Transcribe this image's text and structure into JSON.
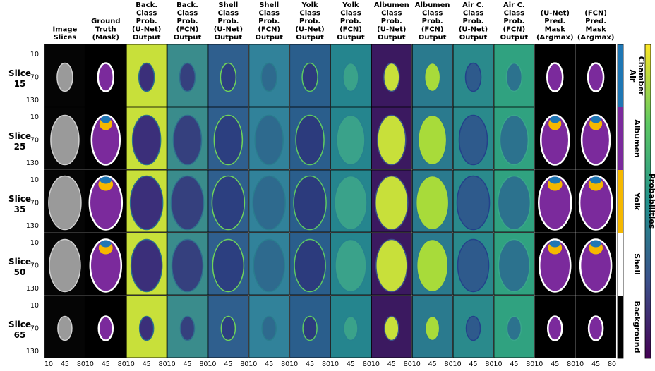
{
  "columns": [
    [
      "Image",
      "Slices"
    ],
    [
      "Ground",
      "Truth",
      "(Mask)"
    ],
    [
      "Back.",
      "Class",
      "Prob.",
      "(U-Net)",
      "Output"
    ],
    [
      "Back.",
      "Class",
      "Prob.",
      "(FCN)",
      "Output"
    ],
    [
      "Shell",
      "Class",
      "Prob.",
      "(U-Net)",
      "Output"
    ],
    [
      "Shell",
      "Class",
      "Prob.",
      "(FCN)",
      "Output"
    ],
    [
      "Yolk",
      "Class",
      "Prob.",
      "(U-Net)",
      "Output"
    ],
    [
      "Yolk",
      "Class",
      "Prob.",
      "(FCN)",
      "Output"
    ],
    [
      "Albumen",
      "Class",
      "Prob.",
      "(U-Net)",
      "Output"
    ],
    [
      "Albumen",
      "Class",
      "Prob.",
      "(FCN)",
      "Output"
    ],
    [
      "Air C.",
      "Class",
      "Prob.",
      "(U-Net)",
      "Output"
    ],
    [
      "Air C.",
      "Class",
      "Prob.",
      "(FCN)",
      "Output"
    ],
    [
      "(U-Net)",
      "Pred.",
      "Mask",
      "(Argmax)"
    ],
    [
      "(FCN)",
      "Pred.",
      "Mask",
      "(Argmax)"
    ]
  ],
  "rows": [
    [
      "Slice",
      "15"
    ],
    [
      "Slice",
      "25"
    ],
    [
      "Slice",
      "35"
    ],
    [
      "Slice",
      "50"
    ],
    [
      "Slice",
      "65"
    ]
  ],
  "y_ticks": [
    "10",
    "70",
    "130"
  ],
  "x_ticks": [
    "10",
    "45",
    "80"
  ],
  "class_legend": [
    [
      "Air",
      "Chamber"
    ],
    [
      "Albumen"
    ],
    [
      "Yolk"
    ],
    [
      "Shell"
    ],
    [
      "Background"
    ]
  ],
  "colorbar_label": "Probabilities"
}
